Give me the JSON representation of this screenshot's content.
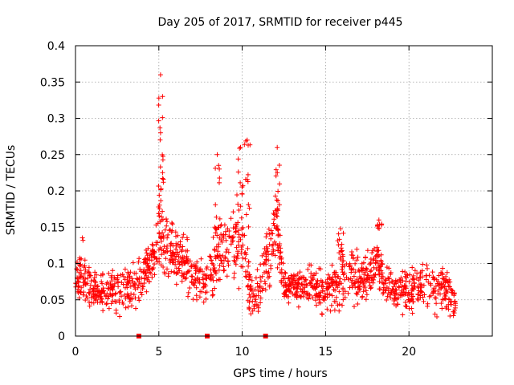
{
  "chart_data": {
    "type": "scatter",
    "title": "Day 205 of 2017, SRMTID for receiver p445",
    "xlabel": "GPS time / hours",
    "ylabel": "SRMTID / TECUs",
    "xlim": [
      0,
      25
    ],
    "ylim": [
      0,
      0.4
    ],
    "xticks": [
      0,
      5,
      10,
      15,
      20
    ],
    "xtick_labels": [
      "0",
      "5",
      "10",
      "15",
      "20"
    ],
    "yticks": [
      0,
      0.05,
      0.1,
      0.15,
      0.2,
      0.25,
      0.3,
      0.35,
      0.4
    ],
    "ytick_labels": [
      "0",
      "0.05",
      "0.1",
      "0.15",
      "0.2",
      "0.25",
      "0.3",
      "0.35",
      "0.4"
    ],
    "grid": true,
    "marker": "plus",
    "color": "#ff0000",
    "data_range_hours": [
      0,
      22.8
    ],
    "gap_markers_x": [
      3.8,
      7.9,
      11.4
    ],
    "peaks": [
      {
        "x": 5.1,
        "y": 0.36
      },
      {
        "x": 5.1,
        "y": 0.28
      },
      {
        "x": 8.5,
        "y": 0.25
      },
      {
        "x": 9.9,
        "y": 0.26
      },
      {
        "x": 10.3,
        "y": 0.27
      },
      {
        "x": 12.1,
        "y": 0.26
      },
      {
        "x": 15.9,
        "y": 0.148
      },
      {
        "x": 18.2,
        "y": 0.16
      }
    ],
    "series": [
      {
        "name": "SRMTID",
        "profile": [
          {
            "x": 0.0,
            "y": 0.07,
            "spread": 0.03
          },
          {
            "x": 0.3,
            "y": 0.09,
            "spread": 0.04
          },
          {
            "x": 1.0,
            "y": 0.06,
            "spread": 0.02
          },
          {
            "x": 2.0,
            "y": 0.06,
            "spread": 0.025
          },
          {
            "x": 3.0,
            "y": 0.065,
            "spread": 0.025
          },
          {
            "x": 4.0,
            "y": 0.08,
            "spread": 0.025
          },
          {
            "x": 4.7,
            "y": 0.11,
            "spread": 0.03
          },
          {
            "x": 5.1,
            "y": 0.15,
            "spread": 0.05
          },
          {
            "x": 5.5,
            "y": 0.12,
            "spread": 0.04
          },
          {
            "x": 6.5,
            "y": 0.1,
            "spread": 0.035
          },
          {
            "x": 7.5,
            "y": 0.08,
            "spread": 0.03
          },
          {
            "x": 8.0,
            "y": 0.07,
            "spread": 0.03
          },
          {
            "x": 8.5,
            "y": 0.12,
            "spread": 0.05
          },
          {
            "x": 9.5,
            "y": 0.14,
            "spread": 0.05
          },
          {
            "x": 10.0,
            "y": 0.12,
            "spread": 0.05
          },
          {
            "x": 10.6,
            "y": 0.05,
            "spread": 0.025
          },
          {
            "x": 11.2,
            "y": 0.08,
            "spread": 0.03
          },
          {
            "x": 12.0,
            "y": 0.16,
            "spread": 0.05
          },
          {
            "x": 12.5,
            "y": 0.07,
            "spread": 0.02
          },
          {
            "x": 13.5,
            "y": 0.07,
            "spread": 0.025
          },
          {
            "x": 15.0,
            "y": 0.065,
            "spread": 0.025
          },
          {
            "x": 16.0,
            "y": 0.075,
            "spread": 0.03
          },
          {
            "x": 17.0,
            "y": 0.08,
            "spread": 0.03
          },
          {
            "x": 18.0,
            "y": 0.09,
            "spread": 0.03
          },
          {
            "x": 19.0,
            "y": 0.06,
            "spread": 0.025
          },
          {
            "x": 20.0,
            "y": 0.06,
            "spread": 0.025
          },
          {
            "x": 21.0,
            "y": 0.07,
            "spread": 0.03
          },
          {
            "x": 22.0,
            "y": 0.07,
            "spread": 0.03
          },
          {
            "x": 22.8,
            "y": 0.05,
            "spread": 0.02
          }
        ]
      }
    ]
  }
}
